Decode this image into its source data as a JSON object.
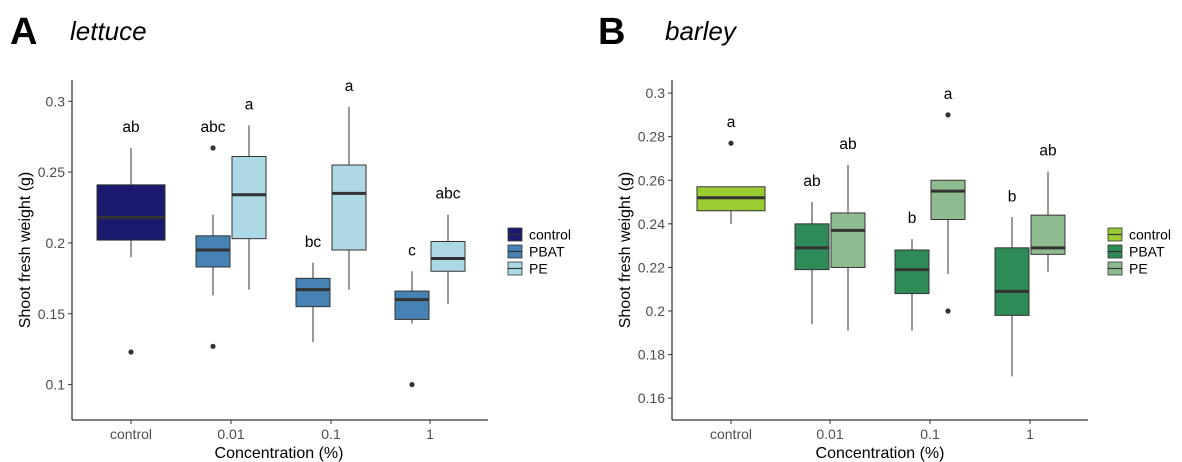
{
  "chart_data": [
    {
      "panel": "A",
      "title": "lettuce",
      "type": "box",
      "xlabel": "Concentration (%)",
      "ylabel": "Shoot fresh weight (g)",
      "ylim": [
        0.075,
        0.315
      ],
      "yticks": [
        0.1,
        0.15,
        0.2,
        0.25,
        0.3
      ],
      "ytick_labels": [
        "0.1",
        "0.15",
        "0.2",
        "0.25",
        "0.3"
      ],
      "categories": [
        "control",
        "0.01",
        "0.1",
        "1"
      ],
      "legend_position": "right",
      "series": [
        {
          "name": "control",
          "color": "#1a1a6e"
        },
        {
          "name": "PBAT",
          "color": "#4682b4"
        },
        {
          "name": "PE",
          "color": "#add8e6"
        }
      ],
      "boxes": [
        {
          "category": "control",
          "group": "control",
          "slot": "single",
          "min": 0.19,
          "q1": 0.202,
          "median": 0.218,
          "q3": 0.241,
          "max": 0.267,
          "outliers": [
            0.123
          ],
          "letter": "ab"
        },
        {
          "category": "0.01",
          "group": "PBAT",
          "slot": "left",
          "min": 0.163,
          "q1": 0.183,
          "median": 0.195,
          "q3": 0.205,
          "max": 0.22,
          "outliers": [
            0.267,
            0.127
          ],
          "letter": "abc"
        },
        {
          "category": "0.01",
          "group": "PE",
          "slot": "right",
          "min": 0.167,
          "q1": 0.203,
          "median": 0.234,
          "q3": 0.261,
          "max": 0.283,
          "outliers": [],
          "letter": "a"
        },
        {
          "category": "0.1",
          "group": "PBAT",
          "slot": "left",
          "min": 0.13,
          "q1": 0.155,
          "median": 0.167,
          "q3": 0.175,
          "max": 0.186,
          "outliers": [],
          "letter": "bc"
        },
        {
          "category": "0.1",
          "group": "PE",
          "slot": "right",
          "min": 0.167,
          "q1": 0.195,
          "median": 0.235,
          "q3": 0.255,
          "max": 0.296,
          "outliers": [],
          "letter": "a"
        },
        {
          "category": "1",
          "group": "PBAT",
          "slot": "left",
          "min": 0.143,
          "q1": 0.146,
          "median": 0.16,
          "q3": 0.166,
          "max": 0.18,
          "outliers": [
            0.1
          ],
          "letter": "c"
        },
        {
          "category": "1",
          "group": "PE",
          "slot": "right",
          "min": 0.157,
          "q1": 0.18,
          "median": 0.189,
          "q3": 0.201,
          "max": 0.22,
          "outliers": [],
          "letter": "abc"
        }
      ]
    },
    {
      "panel": "B",
      "title": "barley",
      "type": "box",
      "xlabel": "Concentration (%)",
      "ylabel": "Shoot fresh weight (g)",
      "ylim": [
        0.15,
        0.306
      ],
      "yticks": [
        0.16,
        0.18,
        0.2,
        0.22,
        0.24,
        0.26,
        0.28,
        0.3
      ],
      "ytick_labels": [
        "0.16",
        "0.18",
        "0.2",
        "0.22",
        "0.24",
        "0.26",
        "0.28",
        "0.3"
      ],
      "categories": [
        "control",
        "0.01",
        "0.1",
        "1"
      ],
      "legend_position": "right",
      "series": [
        {
          "name": "control",
          "color": "#9acd32"
        },
        {
          "name": "PBAT",
          "color": "#2e8b57"
        },
        {
          "name": "PE",
          "color": "#8fbc8f"
        }
      ],
      "boxes": [
        {
          "category": "control",
          "group": "control",
          "slot": "single",
          "min": 0.24,
          "q1": 0.246,
          "median": 0.252,
          "q3": 0.257,
          "max": 0.257,
          "outliers": [
            0.277
          ],
          "letter": "a"
        },
        {
          "category": "0.01",
          "group": "PBAT",
          "slot": "left",
          "min": 0.194,
          "q1": 0.219,
          "median": 0.229,
          "q3": 0.24,
          "max": 0.25,
          "outliers": [],
          "letter": "ab"
        },
        {
          "category": "0.01",
          "group": "PE",
          "slot": "right",
          "min": 0.191,
          "q1": 0.22,
          "median": 0.237,
          "q3": 0.245,
          "max": 0.267,
          "outliers": [],
          "letter": "ab"
        },
        {
          "category": "0.1",
          "group": "PBAT",
          "slot": "left",
          "min": 0.191,
          "q1": 0.208,
          "median": 0.219,
          "q3": 0.228,
          "max": 0.233,
          "outliers": [],
          "letter": "b"
        },
        {
          "category": "0.1",
          "group": "PE",
          "slot": "right",
          "min": 0.217,
          "q1": 0.242,
          "median": 0.255,
          "q3": 0.26,
          "max": 0.26,
          "outliers": [
            0.29,
            0.2
          ],
          "letter": "a"
        },
        {
          "category": "1",
          "group": "PBAT",
          "slot": "left",
          "min": 0.17,
          "q1": 0.198,
          "median": 0.209,
          "q3": 0.229,
          "max": 0.243,
          "outliers": [],
          "letter": "b"
        },
        {
          "category": "1",
          "group": "PE",
          "slot": "right",
          "min": 0.218,
          "q1": 0.226,
          "median": 0.229,
          "q3": 0.244,
          "max": 0.264,
          "outliers": [],
          "letter": "ab"
        }
      ]
    }
  ]
}
